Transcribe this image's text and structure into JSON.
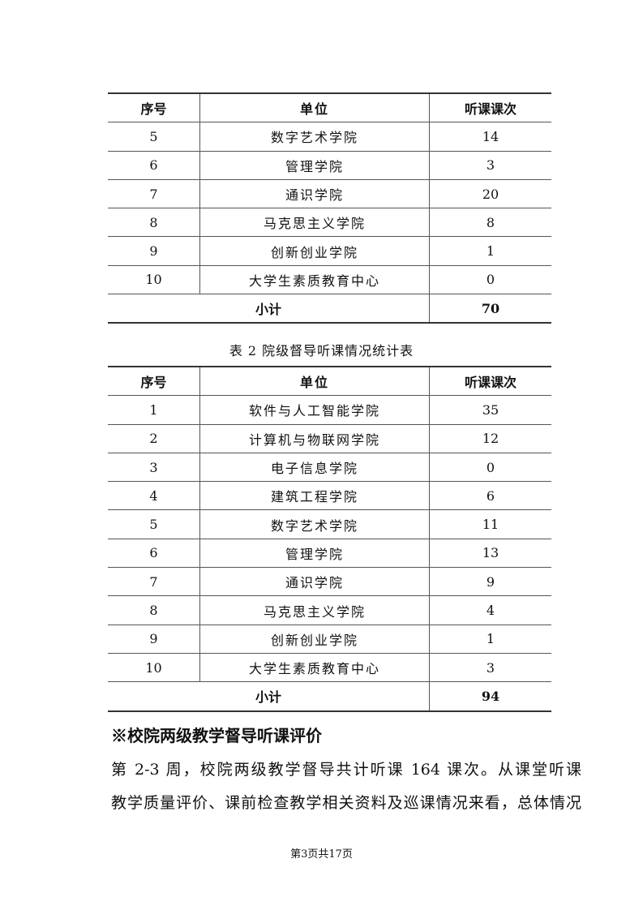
{
  "table1": {
    "headers": [
      "序号",
      "单位",
      "听课课次"
    ],
    "rows": [
      [
        "5",
        "数字艺术学院",
        "14"
      ],
      [
        "6",
        "管理学院",
        "3"
      ],
      [
        "7",
        "通识学院",
        "20"
      ],
      [
        "8",
        "马克思主义学院",
        "8"
      ],
      [
        "9",
        "创新创业学院",
        "1"
      ],
      [
        "10",
        "大学生素质教育中心",
        "0"
      ]
    ],
    "subtotal_label": "小计",
    "subtotal_value": "70"
  },
  "table2": {
    "caption": "表 2 院级督导听课情况统计表",
    "headers": [
      "序号",
      "单位",
      "听课课次"
    ],
    "rows": [
      [
        "1",
        "软件与人工智能学院",
        "35"
      ],
      [
        "2",
        "计算机与物联网学院",
        "12"
      ],
      [
        "3",
        "电子信息学院",
        "0"
      ],
      [
        "4",
        "建筑工程学院",
        "6"
      ],
      [
        "5",
        "数字艺术学院",
        "11"
      ],
      [
        "6",
        "管理学院",
        "13"
      ],
      [
        "7",
        "通识学院",
        "9"
      ],
      [
        "8",
        "马克思主义学院",
        "4"
      ],
      [
        "9",
        "创新创业学院",
        "1"
      ],
      [
        "10",
        "大学生素质教育中心",
        "3"
      ]
    ],
    "subtotal_label": "小计",
    "subtotal_value": "94"
  },
  "section": {
    "heading": "※校院两级教学督导听课评价",
    "lines": [
      "第 2-3 周，校院两级教学督导共计听课 164 课次。从课堂听课",
      "教学质量评价、课前检查教学相关资料及巡课情况来看，总体情况"
    ]
  },
  "footer": "第3页共17页"
}
